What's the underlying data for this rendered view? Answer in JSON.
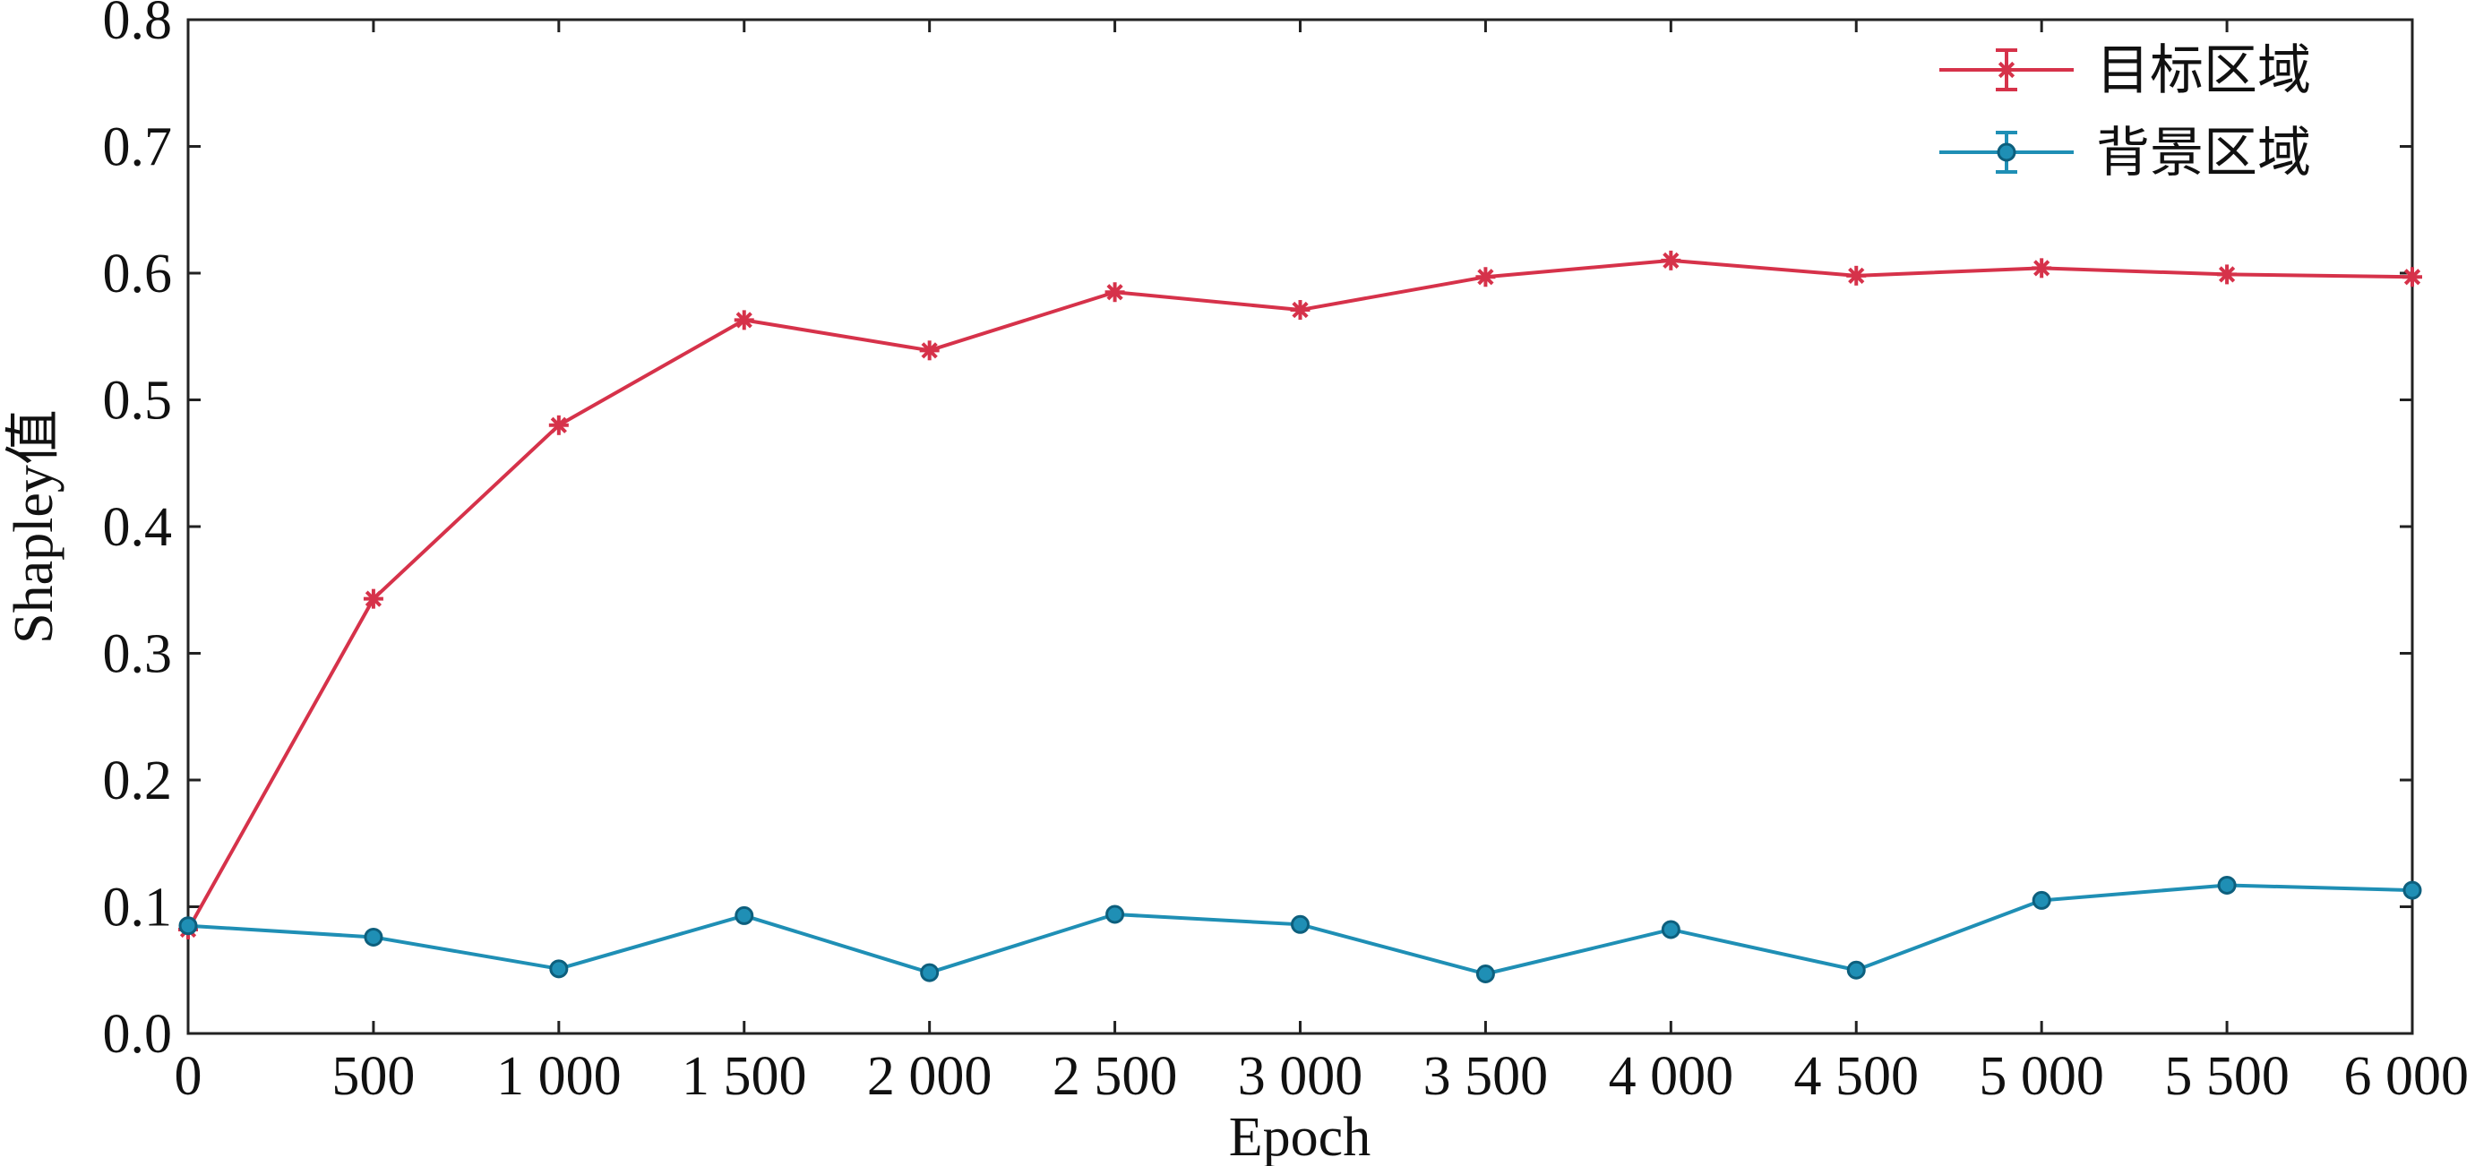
{
  "chart_data": {
    "type": "line",
    "xlabel": "Epoch",
    "ylabel": "Shapley值",
    "xlim": [
      0,
      6000
    ],
    "ylim": [
      0.0,
      0.8
    ],
    "x": [
      0,
      500,
      1000,
      1500,
      2000,
      2500,
      3000,
      3500,
      4000,
      4500,
      5000,
      5500,
      6000
    ],
    "x_tick_labels": [
      "0",
      "500",
      "1 000",
      "1 500",
      "2 000",
      "2 500",
      "3 000",
      "3 500",
      "4 000",
      "4 500",
      "5 000",
      "5 500",
      "6 000"
    ],
    "y_ticks": [
      0.0,
      0.1,
      0.2,
      0.3,
      0.4,
      0.5,
      0.6,
      0.7,
      0.8
    ],
    "y_tick_labels": [
      "0.0",
      "0.1",
      "0.2",
      "0.3",
      "0.4",
      "0.5",
      "0.6",
      "0.7",
      "0.8"
    ],
    "grid": false,
    "legend_position": "top-right",
    "series": [
      {
        "name": "目标区域",
        "color": "#d6324a",
        "marker": "asterisk",
        "values": [
          0.082,
          0.343,
          0.48,
          0.563,
          0.539,
          0.585,
          0.571,
          0.597,
          0.61,
          0.598,
          0.604,
          0.599,
          0.597
        ]
      },
      {
        "name": "背景区域",
        "color": "#1f8fb5",
        "marker": "circle",
        "values": [
          0.085,
          0.076,
          0.051,
          0.093,
          0.048,
          0.094,
          0.086,
          0.047,
          0.082,
          0.05,
          0.105,
          0.117,
          0.113
        ]
      }
    ]
  }
}
